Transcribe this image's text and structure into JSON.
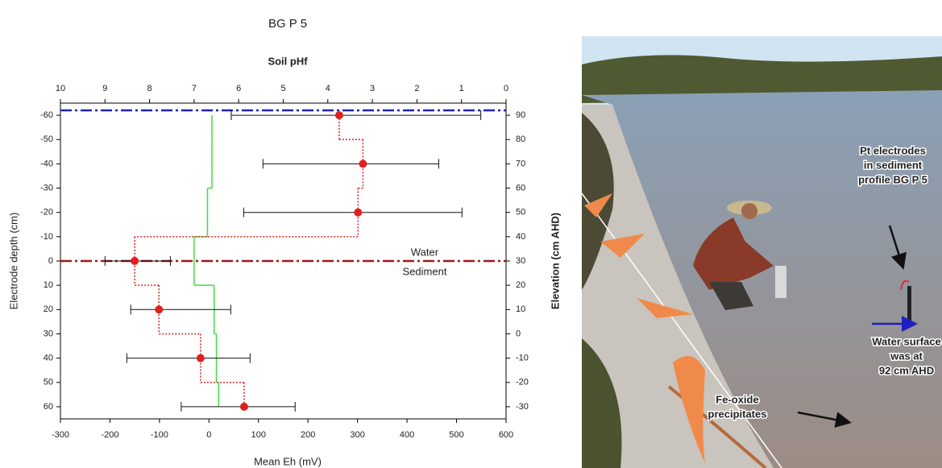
{
  "chart_data": {
    "type": "scatter",
    "title": "BG P 5",
    "xlabel": "Mean Eh (mV)",
    "x2label": "Soil pHf",
    "ylabel": "Electrode depth (cm)",
    "y2label": "Elevation (cm AHD)",
    "xlim": [
      -300,
      600
    ],
    "xticks": [
      -300,
      -200,
      -100,
      0,
      100,
      200,
      300,
      400,
      500,
      600
    ],
    "x2lim": [
      10,
      0
    ],
    "x2ticks": [
      10,
      9,
      8,
      7,
      6,
      5,
      4,
      3,
      2,
      1,
      0
    ],
    "ylim": [
      -65,
      65
    ],
    "yticks": [
      -60,
      -50,
      -40,
      -30,
      -20,
      -10,
      0,
      10,
      20,
      30,
      40,
      50,
      60
    ],
    "y2lim": [
      95,
      -35
    ],
    "y2ticks": [
      90,
      80,
      70,
      60,
      50,
      40,
      30,
      20,
      10,
      0,
      -10,
      -20,
      -30
    ],
    "y": [
      -60,
      -40,
      -20,
      0,
      20,
      40,
      60
    ],
    "eh": {
      "color": "#e02020",
      "values": [
        263,
        311,
        301,
        -150,
        -101,
        -17,
        71
      ],
      "xmin": [
        45,
        109,
        70,
        -210,
        -158,
        -166,
        -56
      ],
      "xmax": [
        549,
        464,
        511,
        -78,
        44,
        83,
        174
      ]
    },
    "ph": {
      "color": "#44dd44",
      "values": [
        6.6,
        6.6,
        6.7,
        7.0,
        6.55,
        6.5,
        6.45
      ]
    },
    "water": {
      "level": -62,
      "label": "Water",
      "color": "#2020c0"
    },
    "sediment": {
      "level": 0,
      "label": "Sediment",
      "color": "#a01818"
    }
  },
  "photo": {
    "callouts": [
      {
        "lines": [
          "Pt electrodes",
          "in sediment",
          "profile BG P 5"
        ]
      },
      {
        "lines": [
          "Water surface",
          "was at",
          "92 cm AHD"
        ]
      },
      {
        "lines": [
          "Fe-oxide",
          "precipitates"
        ]
      }
    ]
  }
}
